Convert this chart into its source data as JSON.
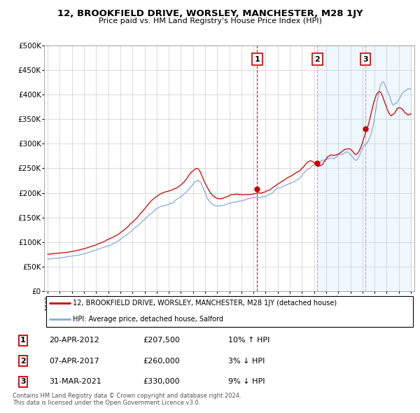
{
  "title": "12, BROOKFIELD DRIVE, WORSLEY, MANCHESTER, M28 1JY",
  "subtitle": "Price paid vs. HM Land Registry's House Price Index (HPI)",
  "legend_property": "12, BROOKFIELD DRIVE, WORSLEY, MANCHESTER, M28 1JY (detached house)",
  "legend_hpi": "HPI: Average price, detached house, Salford",
  "footer": "Contains HM Land Registry data © Crown copyright and database right 2024.\nThis data is licensed under the Open Government Licence v3.0.",
  "sales": [
    {
      "num": 1,
      "date": "20-APR-2012",
      "price": 207500,
      "year": 2012.3,
      "hpi_diff": "10% ↑ HPI",
      "vline_color": "#cc0000",
      "vline_style": "dashed"
    },
    {
      "num": 2,
      "date": "07-APR-2017",
      "price": 260000,
      "year": 2017.27,
      "hpi_diff": "3% ↓ HPI",
      "vline_color": "#aaaaaa",
      "vline_style": "dashed"
    },
    {
      "num": 3,
      "date": "31-MAR-2021",
      "price": 330000,
      "year": 2021.25,
      "hpi_diff": "9% ↓ HPI",
      "vline_color": "#aaaaaa",
      "vline_style": "dashed"
    }
  ],
  "red_color": "#cc0000",
  "blue_color": "#88aadd",
  "blue_fill": "#ddeeff",
  "grid_color": "#cccccc",
  "bg_color": "#ffffff",
  "ylim": [
    0,
    500000
  ],
  "xlim_start": 1994.7,
  "xlim_end": 2025.3,
  "table_rows": [
    {
      "num": "1",
      "date": "20-APR-2012",
      "price": "£207,500",
      "diff": "10% ↑ HPI"
    },
    {
      "num": "2",
      "date": "07-APR-2017",
      "price": "£260,000",
      "diff": "3% ↓ HPI"
    },
    {
      "num": "3",
      "date": "31-MAR-2021",
      "price": "£330,000",
      "diff": "9% ↓ HPI"
    }
  ]
}
